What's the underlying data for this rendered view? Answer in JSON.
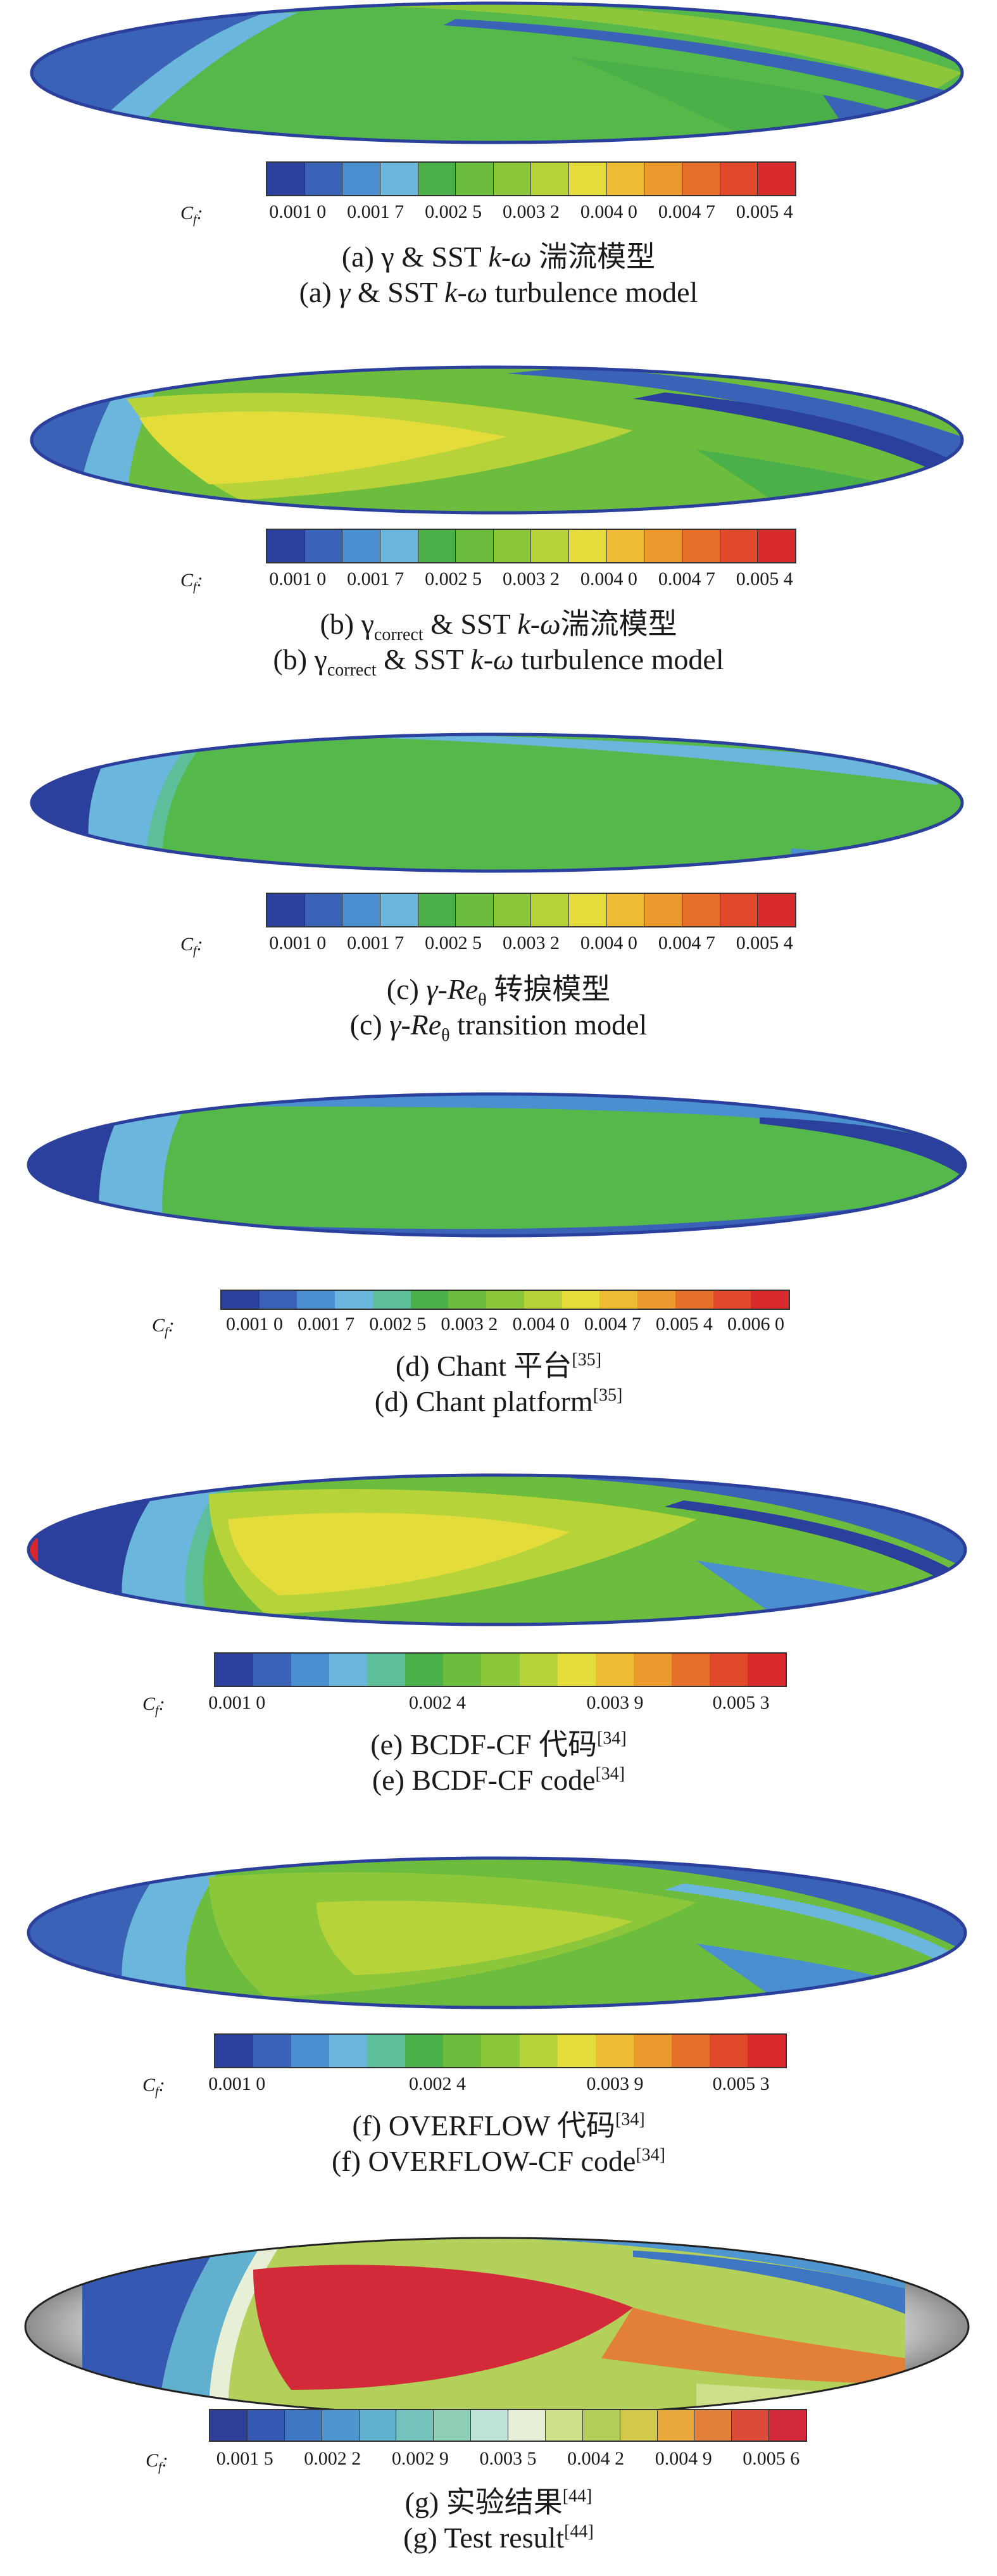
{
  "colorbar_label": "C",
  "colorbar_label_sub": "f",
  "panels": [
    {
      "id": "a",
      "ticks": [
        "0.001 0",
        "0.001 7",
        "0.002 5",
        "0.003 2",
        "0.004 0",
        "0.004 7",
        "0.005 4"
      ],
      "caption_cn_prefix": "(a) γ & SST ",
      "caption_cn_italic": "k-ω",
      "caption_cn_suffix": " 湍流模型",
      "caption_en_prefix": "(a) ",
      "caption_en_italic1": "γ",
      "caption_en_mid": " & SST ",
      "caption_en_italic2": "k-ω",
      "caption_en_suffix": " turbulence model"
    },
    {
      "id": "b",
      "ticks": [
        "0.001 0",
        "0.001 7",
        "0.002 5",
        "0.003 2",
        "0.004 0",
        "0.004 7",
        "0.005 4"
      ],
      "caption_cn_prefix": "(b) γ",
      "caption_cn_sub": "correct",
      "caption_cn_mid": " & SST ",
      "caption_cn_italic": "k-ω",
      "caption_cn_suffix": "湍流模型",
      "caption_en_prefix": "(b) γ",
      "caption_en_sub": "correct",
      "caption_en_mid": " & SST ",
      "caption_en_italic": "k-ω",
      "caption_en_suffix": " turbulence model"
    },
    {
      "id": "c",
      "ticks": [
        "0.001 0",
        "0.001 7",
        "0.002 5",
        "0.003 2",
        "0.004 0",
        "0.004 7",
        "0.005 4"
      ],
      "caption_cn_prefix": "(c) ",
      "caption_cn_italic": "γ-Re",
      "caption_cn_sub": "θ",
      "caption_cn_suffix": " 转捩模型",
      "caption_en_prefix": "(c) ",
      "caption_en_italic": "γ-Re",
      "caption_en_sub": "θ",
      "caption_en_suffix": " transition model"
    },
    {
      "id": "d",
      "ticks": [
        "0.001 0",
        "0.001 7",
        "0.002 5",
        "0.003 2",
        "0.004 0",
        "0.004 7",
        "0.005 4",
        "0.006 0"
      ],
      "caption_cn": "(d) Chant 平台",
      "caption_cn_sup": "[35]",
      "caption_en": "(d) Chant platform",
      "caption_en_sup": "[35]"
    },
    {
      "id": "e",
      "ticks": [
        "0.001 0",
        "0.002 4",
        "0.003 9",
        "0.005 3"
      ],
      "caption_cn": "(e) BCDF-CF 代码",
      "caption_cn_sup": "[34]",
      "caption_en": "(e) BCDF-CF code",
      "caption_en_sup": "[34]"
    },
    {
      "id": "f",
      "ticks": [
        "0.001 0",
        "0.002 4",
        "0.003 9",
        "0.005 3"
      ],
      "caption_cn": "(f) OVERFLOW 代码",
      "caption_cn_sup": "[34]",
      "caption_en": "(f) OVERFLOW-CF code",
      "caption_en_sup": "[34]"
    },
    {
      "id": "g",
      "ticks": [
        "0.001 5",
        "0.002 2",
        "0.002 9",
        "0.003 5",
        "0.004 2",
        "0.004 9",
        "0.005 6"
      ],
      "caption_cn": "(g) 实验结果",
      "caption_cn_sup": "[44]",
      "caption_en": "(g) Test result",
      "caption_en_sup": "[44]"
    }
  ],
  "colors": {
    "scale_cfd": [
      "#2b3f9c",
      "#3a63b8",
      "#4a8fd0",
      "#6bb6dc",
      "#5cbf9a",
      "#4bb04a",
      "#6cbc3e",
      "#8cc63a",
      "#b6d43a",
      "#e3dc3a",
      "#eebc34",
      "#ec9a2e",
      "#e6702a",
      "#e04a2a",
      "#d92b2b"
    ],
    "scale_test": [
      "#2e3f9a",
      "#3558b3",
      "#3f76c4",
      "#4f95cf",
      "#61b0cf",
      "#74c2bc",
      "#8fd0b6",
      "#bfe3d6",
      "#e7f0d6",
      "#cfe08a",
      "#b3d05a",
      "#d2c84a",
      "#e8a83c",
      "#e2803a",
      "#da4b3a",
      "#d32a3a"
    ],
    "blue_dark": "#2f4aa8",
    "blue_mid": "#4a8fd0",
    "green": "#55b84a",
    "yellow_green": "#b8d23e",
    "yellow": "#e6dc3a",
    "red": "#d9262c",
    "gray": "#9a9a9a"
  }
}
